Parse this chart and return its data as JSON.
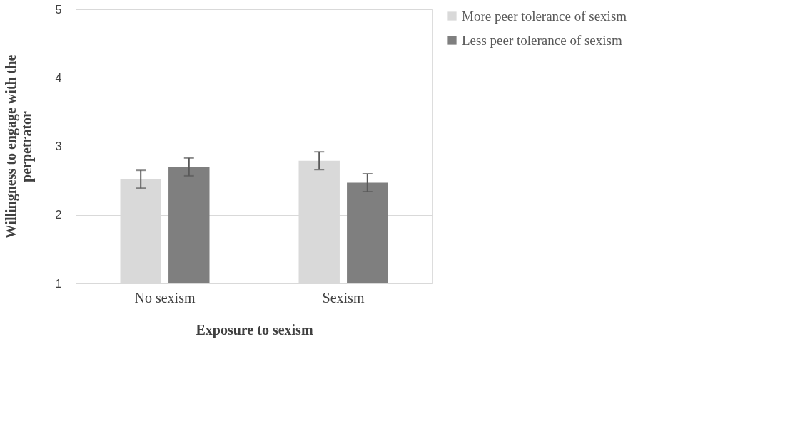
{
  "chart_data": {
    "type": "bar",
    "xlabel": "Exposure to sexism",
    "ylabel": "Willingness to engage with the perpetrator",
    "categories": [
      "No sexism",
      "Sexism"
    ],
    "series": [
      {
        "name": "More peer tolerance of sexism",
        "color": "#d9d9d9",
        "values": [
          2.52,
          2.79
        ],
        "errors": [
          0.13,
          0.13
        ]
      },
      {
        "name": "Less peer tolerance of sexism",
        "color": "#7f7f7f",
        "values": [
          2.7,
          2.47
        ],
        "errors": [
          0.13,
          0.13
        ]
      }
    ],
    "ylim": [
      1,
      5
    ],
    "yticks": [
      1,
      2,
      3,
      4,
      5
    ],
    "grid": "y",
    "legend": "right"
  }
}
